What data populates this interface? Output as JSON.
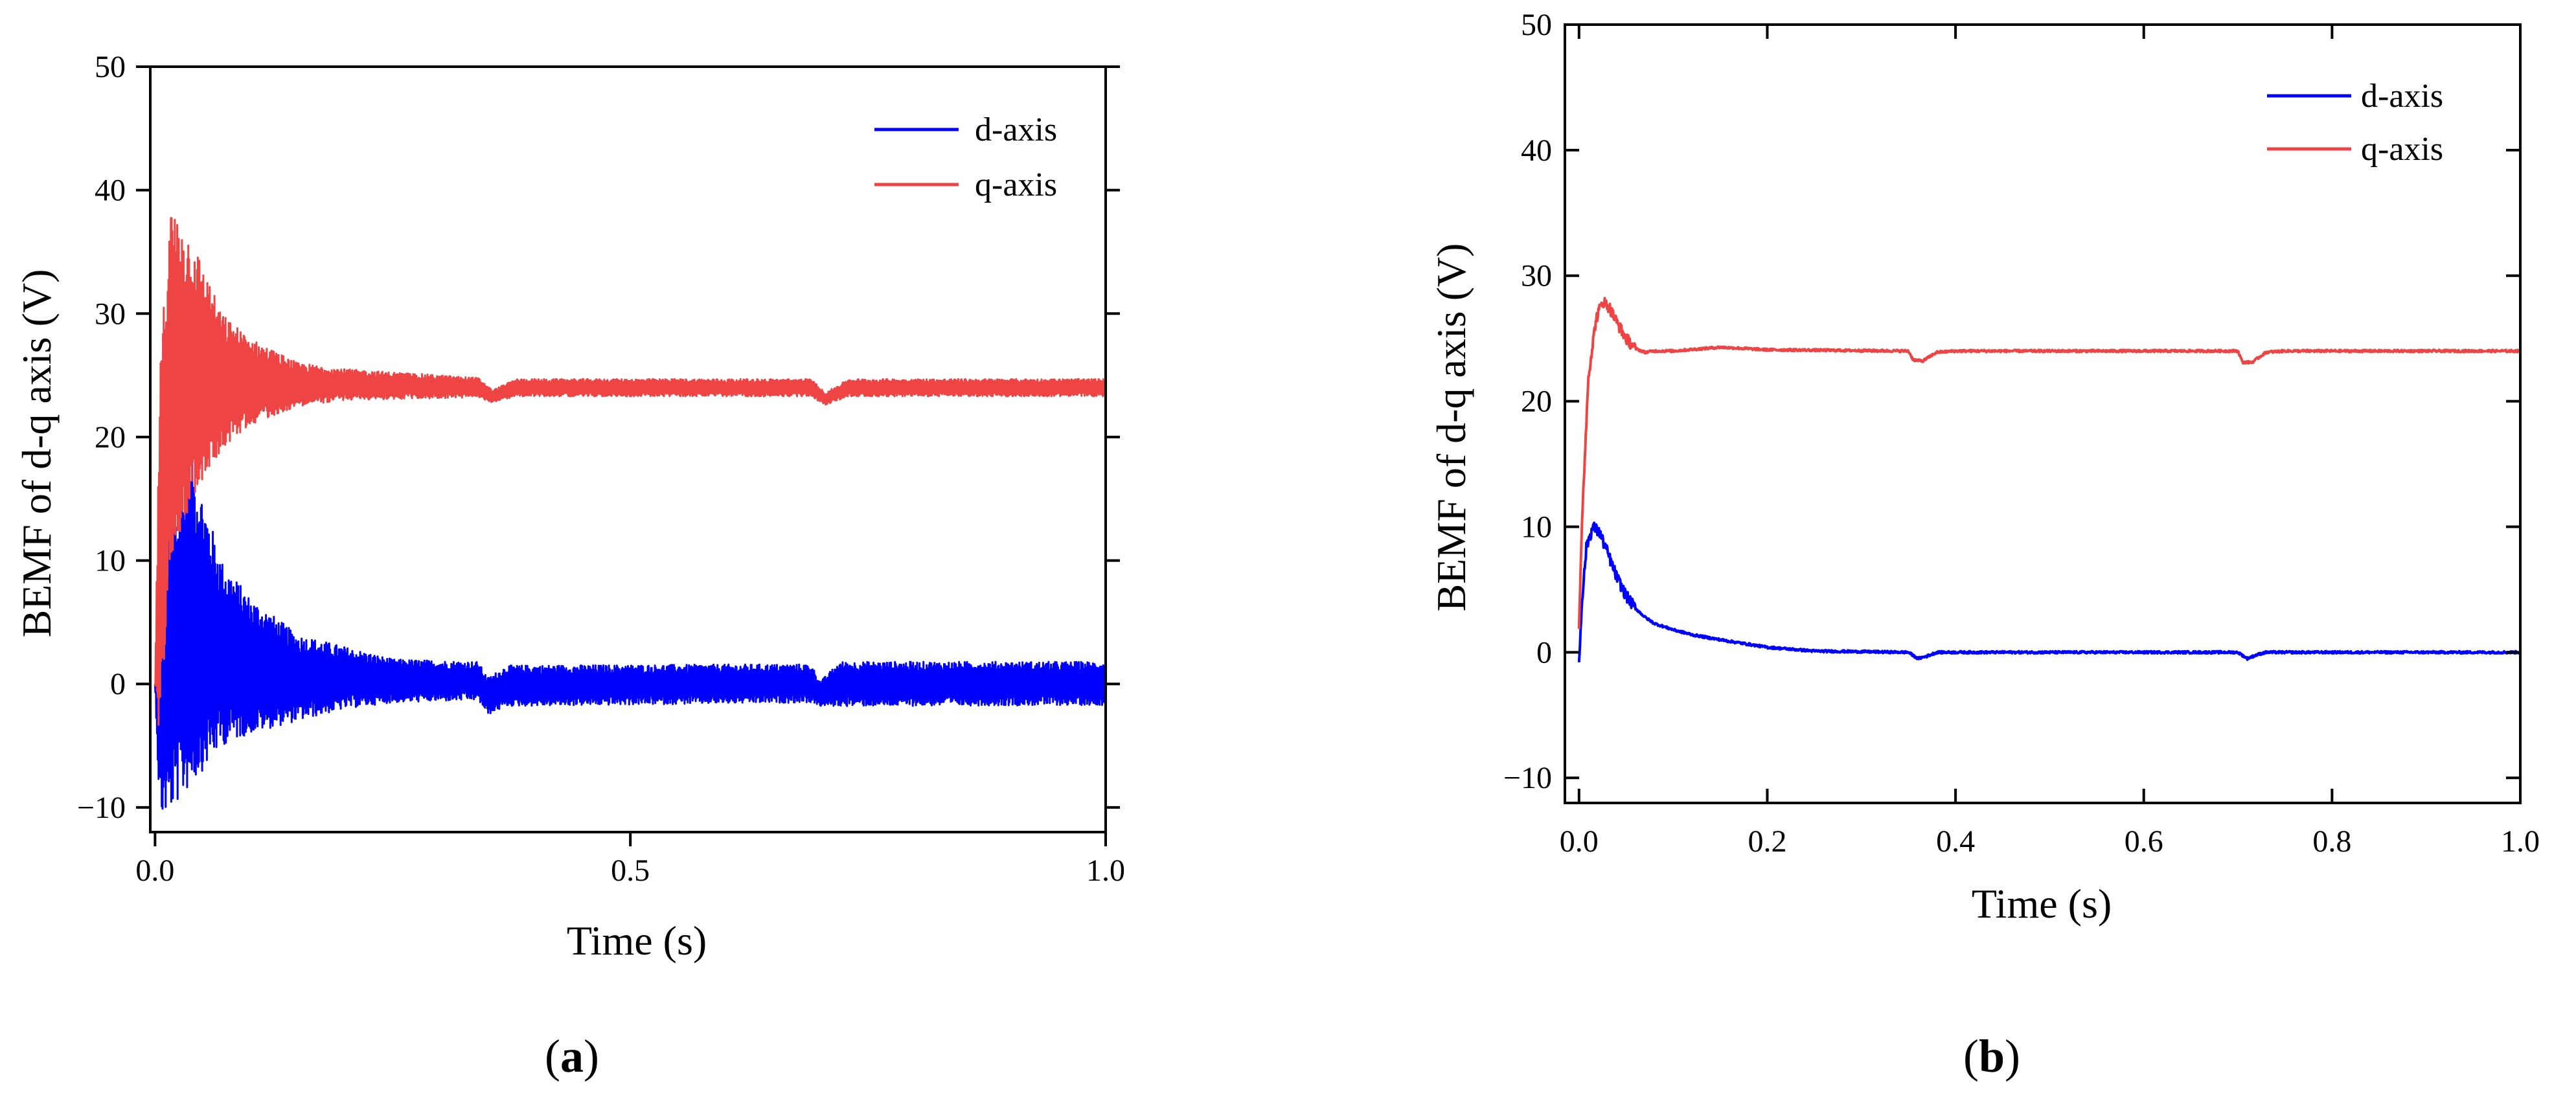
{
  "chart_data": [
    {
      "type": "line",
      "panel_label": {
        "open": "(",
        "letter": "a",
        "close": ")"
      },
      "xlabel": "Time (s)",
      "ylabel": "BEMF of d-q axis (V)",
      "xlim": [
        -0.005,
        1.0
      ],
      "ylim": [
        -12,
        50
      ],
      "xticks": [
        0.0,
        0.5,
        1.0
      ],
      "xtick_labels": [
        "0.0",
        "0.5",
        "1.0"
      ],
      "yticks": [
        -10,
        0,
        10,
        20,
        30,
        40,
        50
      ],
      "ytick_labels": [
        "−10",
        "0",
        "10",
        "20",
        "30",
        "40",
        "50"
      ],
      "legend_position": "top-right",
      "series": [
        {
          "name": "d-axis",
          "color": "#0000ff",
          "envelope": [
            {
              "t": 0.0,
              "lo": 0,
              "hi": 0
            },
            {
              "t": 0.005,
              "lo": -11,
              "hi": 8
            },
            {
              "t": 0.02,
              "lo": -10,
              "hi": 14
            },
            {
              "t": 0.04,
              "lo": -8,
              "hi": 18
            },
            {
              "t": 0.07,
              "lo": -5,
              "hi": 10
            },
            {
              "t": 0.1,
              "lo": -4,
              "hi": 7
            },
            {
              "t": 0.15,
              "lo": -3,
              "hi": 4
            },
            {
              "t": 0.2,
              "lo": -2,
              "hi": 3
            },
            {
              "t": 0.25,
              "lo": -1.5,
              "hi": 2
            },
            {
              "t": 0.34,
              "lo": -1.3,
              "hi": 1.8
            },
            {
              "t": 0.35,
              "lo": -2.5,
              "hi": 0.5
            },
            {
              "t": 0.37,
              "lo": -1.8,
              "hi": 1.5
            },
            {
              "t": 0.69,
              "lo": -1.5,
              "hi": 1.6
            },
            {
              "t": 0.7,
              "lo": -1.8,
              "hi": 0.2
            },
            {
              "t": 0.72,
              "lo": -1.8,
              "hi": 1.8
            },
            {
              "t": 1.0,
              "lo": -1.7,
              "hi": 1.8
            }
          ]
        },
        {
          "name": "q-axis",
          "color": "#ee4444",
          "envelope": [
            {
              "t": 0.0,
              "lo": 0,
              "hi": 0
            },
            {
              "t": 0.005,
              "lo": -5,
              "hi": 25
            },
            {
              "t": 0.015,
              "lo": 10,
              "hi": 39
            },
            {
              "t": 0.04,
              "lo": 15,
              "hi": 36
            },
            {
              "t": 0.07,
              "lo": 19,
              "hi": 30
            },
            {
              "t": 0.1,
              "lo": 21,
              "hi": 28
            },
            {
              "t": 0.15,
              "lo": 22.5,
              "hi": 26
            },
            {
              "t": 0.2,
              "lo": 23,
              "hi": 25.5
            },
            {
              "t": 0.34,
              "lo": 23.2,
              "hi": 24.8
            },
            {
              "t": 0.355,
              "lo": 22.8,
              "hi": 23.8
            },
            {
              "t": 0.38,
              "lo": 23.3,
              "hi": 24.7
            },
            {
              "t": 0.69,
              "lo": 23.3,
              "hi": 24.7
            },
            {
              "t": 0.705,
              "lo": 22.6,
              "hi": 23.6
            },
            {
              "t": 0.73,
              "lo": 23.3,
              "hi": 24.7
            },
            {
              "t": 1.0,
              "lo": 23.3,
              "hi": 24.7
            }
          ]
        }
      ]
    },
    {
      "type": "line",
      "panel_label": {
        "open": "(",
        "letter": "b",
        "close": ")"
      },
      "xlabel": "Time (s)",
      "ylabel": "BEMF of d-q axis (V)",
      "xlim": [
        -0.015,
        1.0
      ],
      "ylim": [
        -12,
        50
      ],
      "xticks": [
        0.0,
        0.2,
        0.4,
        0.6,
        0.8,
        1.0
      ],
      "xtick_labels": [
        "0.0",
        "0.2",
        "0.4",
        "0.6",
        "0.8",
        "1.0"
      ],
      "yticks": [
        -10,
        0,
        10,
        20,
        30,
        40,
        50
      ],
      "ytick_labels": [
        "−10",
        "0",
        "10",
        "20",
        "30",
        "40",
        "50"
      ],
      "legend_position": "top-right",
      "series": [
        {
          "name": "d-axis",
          "color": "#0000ff",
          "points": [
            [
              0.0,
              -1.0
            ],
            [
              0.003,
              4.0
            ],
            [
              0.008,
              8.5
            ],
            [
              0.015,
              10.0
            ],
            [
              0.022,
              9.5
            ],
            [
              0.03,
              8.0
            ],
            [
              0.04,
              6.0
            ],
            [
              0.05,
              4.5
            ],
            [
              0.06,
              3.5
            ],
            [
              0.07,
              2.8
            ],
            [
              0.08,
              2.3
            ],
            [
              0.1,
              1.8
            ],
            [
              0.12,
              1.4
            ],
            [
              0.15,
              1.0
            ],
            [
              0.2,
              0.4
            ],
            [
              0.25,
              0.1
            ],
            [
              0.3,
              0.05
            ],
            [
              0.35,
              0.0
            ],
            [
              0.36,
              -0.5
            ],
            [
              0.37,
              -0.3
            ],
            [
              0.38,
              0.0
            ],
            [
              0.7,
              0.0
            ],
            [
              0.71,
              -0.5
            ],
            [
              0.72,
              -0.2
            ],
            [
              0.73,
              0.0
            ],
            [
              1.0,
              0.0
            ]
          ]
        },
        {
          "name": "q-axis",
          "color": "#ee4444",
          "points": [
            [
              0.0,
              2.0
            ],
            [
              0.004,
              12.0
            ],
            [
              0.01,
              22.0
            ],
            [
              0.018,
              26.5
            ],
            [
              0.025,
              28.0
            ],
            [
              0.032,
              27.5
            ],
            [
              0.04,
              26.3
            ],
            [
              0.05,
              25.0
            ],
            [
              0.06,
              24.2
            ],
            [
              0.07,
              23.9
            ],
            [
              0.08,
              24.0
            ],
            [
              0.1,
              24.0
            ],
            [
              0.15,
              24.3
            ],
            [
              0.2,
              24.1
            ],
            [
              0.35,
              24.0
            ],
            [
              0.355,
              23.3
            ],
            [
              0.365,
              23.2
            ],
            [
              0.38,
              23.9
            ],
            [
              0.4,
              24.0
            ],
            [
              0.7,
              24.0
            ],
            [
              0.705,
              23.1
            ],
            [
              0.715,
              23.1
            ],
            [
              0.73,
              23.9
            ],
            [
              0.75,
              24.0
            ],
            [
              1.0,
              24.0
            ]
          ]
        }
      ]
    }
  ]
}
